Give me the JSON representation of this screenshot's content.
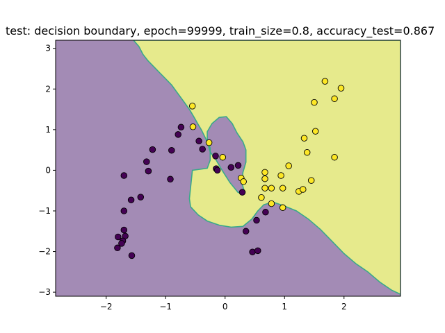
{
  "chart_data": {
    "type": "scatter",
    "title": "test: decision boundary, epoch=99999, train_size=0.8, accuracy_test=0.867",
    "xlabel": "",
    "ylabel": "",
    "xlim": [
      -2.85,
      2.95
    ],
    "ylim": [
      -3.1,
      3.2
    ],
    "x_ticks": [
      -2,
      -1,
      0,
      1,
      2
    ],
    "y_ticks": [
      -3,
      -2,
      -1,
      0,
      1,
      2,
      3
    ],
    "grid": false,
    "legend": "none",
    "colors": {
      "region_class0": "#a38bb5",
      "region_class1": "#e6ea8c",
      "boundary_stroke": "#3aa98a",
      "point_class0": "#440154",
      "point_class1": "#fde725",
      "point_edge": "#000000"
    },
    "decision_boundary": {
      "outer": [
        [
          -1.54,
          3.2
        ],
        [
          -1.45,
          3.05
        ],
        [
          -1.38,
          2.85
        ],
        [
          -1.3,
          2.7
        ],
        [
          -1.2,
          2.55
        ],
        [
          -1.1,
          2.4
        ],
        [
          -1.0,
          2.25
        ],
        [
          -0.9,
          2.1
        ],
        [
          -0.8,
          1.9
        ],
        [
          -0.7,
          1.7
        ],
        [
          -0.6,
          1.5
        ],
        [
          -0.52,
          1.3
        ],
        [
          -0.45,
          1.12
        ],
        [
          -0.4,
          1.0
        ],
        [
          -0.35,
          0.85
        ],
        [
          -0.3,
          0.7
        ],
        [
          -0.25,
          0.55
        ],
        [
          -0.25,
          0.25
        ],
        [
          -0.3,
          0.05
        ],
        [
          -0.55,
          0.0
        ],
        [
          -0.6,
          -0.7
        ],
        [
          -0.58,
          -0.9
        ],
        [
          -0.45,
          -1.1
        ],
        [
          -0.3,
          -1.25
        ],
        [
          -0.1,
          -1.35
        ],
        [
          0.1,
          -1.4
        ],
        [
          0.3,
          -1.38
        ],
        [
          0.45,
          -1.2
        ],
        [
          0.55,
          -1.0
        ],
        [
          0.65,
          -0.85
        ],
        [
          0.8,
          -0.78
        ],
        [
          1.0,
          -0.88
        ],
        [
          1.2,
          -1.0
        ],
        [
          1.4,
          -1.2
        ],
        [
          1.6,
          -1.45
        ],
        [
          1.8,
          -1.75
        ],
        [
          2.0,
          -2.05
        ],
        [
          2.2,
          -2.3
        ],
        [
          2.4,
          -2.5
        ],
        [
          2.6,
          -2.75
        ],
        [
          2.8,
          -2.95
        ],
        [
          2.95,
          -3.05
        ]
      ],
      "inner_hole": [
        [
          -0.22,
          1.15
        ],
        [
          -0.1,
          1.3
        ],
        [
          0.02,
          1.32
        ],
        [
          0.12,
          1.15
        ],
        [
          0.2,
          0.92
        ],
        [
          0.3,
          0.7
        ],
        [
          0.35,
          0.5
        ],
        [
          0.35,
          0.2
        ],
        [
          0.3,
          -0.05
        ],
        [
          0.28,
          -0.3
        ],
        [
          0.33,
          -0.55
        ],
        [
          0.22,
          -0.55
        ],
        [
          0.08,
          -0.3
        ],
        [
          -0.05,
          0.0
        ],
        [
          -0.15,
          0.25
        ],
        [
          -0.25,
          0.45
        ],
        [
          -0.3,
          0.7
        ],
        [
          -0.3,
          0.95
        ]
      ]
    },
    "series": [
      {
        "class": 0,
        "points": [
          [
            -1.7,
            -0.13
          ],
          [
            -1.22,
            0.51
          ],
          [
            -1.32,
            0.21
          ],
          [
            -1.29,
            -0.02
          ],
          [
            -0.9,
            0.49
          ],
          [
            -0.92,
            -0.22
          ],
          [
            -0.79,
            0.88
          ],
          [
            -0.74,
            1.06
          ],
          [
            -0.44,
            0.72
          ],
          [
            -0.38,
            0.52
          ],
          [
            -0.16,
            0.35
          ],
          [
            -0.15,
            0.04
          ],
          [
            -0.13,
            0.0
          ],
          [
            0.1,
            0.07
          ],
          [
            0.22,
            0.12
          ],
          [
            0.29,
            -0.54
          ],
          [
            -1.42,
            -0.66
          ],
          [
            -1.58,
            -0.73
          ],
          [
            -1.7,
            -1.0
          ],
          [
            -1.7,
            -1.47
          ],
          [
            -1.68,
            -1.62
          ],
          [
            -1.8,
            -1.64
          ],
          [
            -1.72,
            -1.74
          ],
          [
            -1.74,
            -1.8
          ],
          [
            -1.81,
            -1.91
          ],
          [
            -1.57,
            -2.1
          ],
          [
            0.35,
            -1.5
          ],
          [
            0.53,
            -1.23
          ],
          [
            0.68,
            -1.03
          ],
          [
            0.46,
            -2.01
          ],
          [
            0.55,
            -1.98
          ]
        ]
      },
      {
        "class": 1,
        "points": [
          [
            -0.55,
            1.58
          ],
          [
            -0.54,
            1.07
          ],
          [
            -0.27,
            0.68
          ],
          [
            -0.04,
            0.32
          ],
          [
            0.27,
            -0.19
          ],
          [
            0.31,
            -0.28
          ],
          [
            0.67,
            -0.05
          ],
          [
            0.67,
            -0.21
          ],
          [
            0.67,
            -0.44
          ],
          [
            0.78,
            -0.44
          ],
          [
            0.61,
            -0.67
          ],
          [
            0.78,
            -0.82
          ],
          [
            0.94,
            -0.13
          ],
          [
            0.97,
            -0.44
          ],
          [
            0.97,
            -0.92
          ],
          [
            1.07,
            0.11
          ],
          [
            1.24,
            -0.52
          ],
          [
            1.31,
            -0.47
          ],
          [
            1.45,
            -0.25
          ],
          [
            1.33,
            0.79
          ],
          [
            1.38,
            0.44
          ],
          [
            1.52,
            0.96
          ],
          [
            1.5,
            1.67
          ],
          [
            1.68,
            2.19
          ],
          [
            1.84,
            1.76
          ],
          [
            1.95,
            2.02
          ],
          [
            1.84,
            0.32
          ]
        ]
      }
    ]
  }
}
